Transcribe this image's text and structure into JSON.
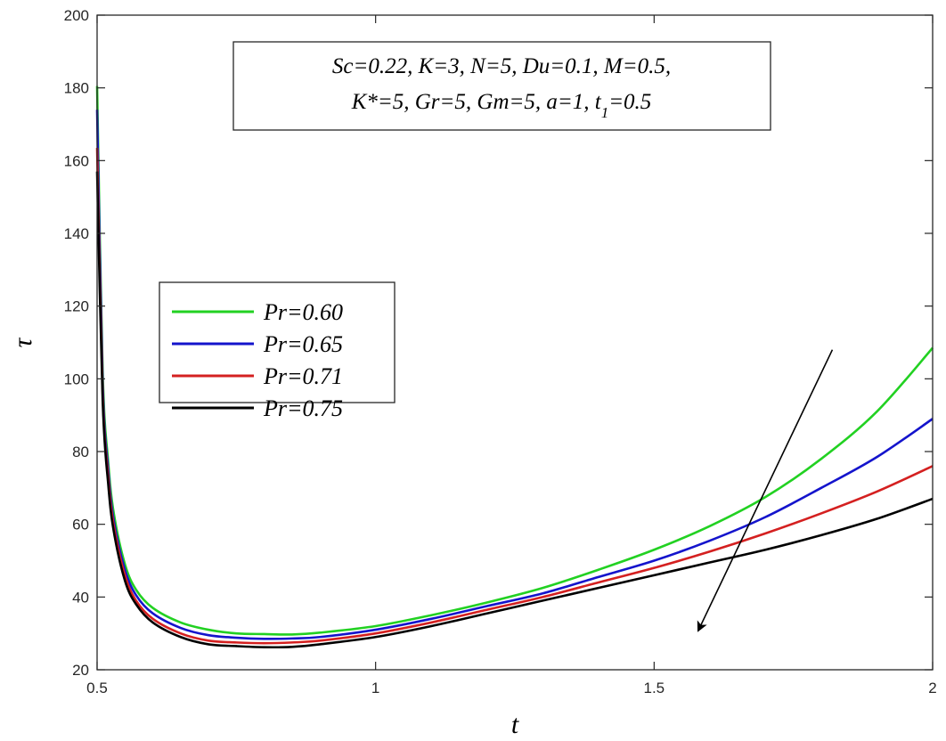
{
  "chart_data": {
    "type": "line",
    "xlabel": "t",
    "ylabel": "τ",
    "xlim": [
      0.5,
      2
    ],
    "ylim": [
      20,
      200
    ],
    "xticks": [
      0.5,
      1,
      1.5,
      2
    ],
    "xtick_labels": [
      "0.5",
      "1",
      "1.5",
      "2"
    ],
    "yticks": [
      20,
      40,
      60,
      80,
      100,
      120,
      140,
      160,
      180,
      200
    ],
    "ytick_labels": [
      "20",
      "40",
      "60",
      "80",
      "100",
      "120",
      "140",
      "160",
      "180",
      "200"
    ],
    "grid": false,
    "legend_position": "center-left",
    "annotation": {
      "line1": "Sc=0.22, K=3, N=5, Du=0.1, M=0.5,",
      "line2_prefix": "K*=5, Gr=5, Gm=5, a=1, t",
      "line2_sub": "1",
      "line2_suffix": "=0.5"
    },
    "x": [
      0.5,
      0.51,
      0.52,
      0.53,
      0.55,
      0.57,
      0.6,
      0.65,
      0.7,
      0.75,
      0.8,
      0.85,
      0.9,
      1.0,
      1.1,
      1.2,
      1.3,
      1.4,
      1.5,
      1.6,
      1.7,
      1.8,
      1.9,
      2.0
    ],
    "series": [
      {
        "name": "Pr=0.60",
        "color": "#22d122",
        "values": [
          180.5,
          102,
          77,
          63,
          49,
          42,
          37,
          33,
          31,
          30,
          29.8,
          29.7,
          30.2,
          32,
          35,
          38.5,
          42.5,
          47.5,
          53,
          59.5,
          67.5,
          78,
          91,
          108.5
        ]
      },
      {
        "name": "Pr=0.65",
        "color": "#1414cc",
        "values": [
          174,
          99,
          75,
          61,
          47.5,
          40.5,
          35.5,
          31.5,
          29.5,
          28.8,
          28.5,
          28.6,
          29,
          31,
          34,
          37.5,
          41,
          45.5,
          50,
          55.5,
          62,
          70,
          78.5,
          89
        ]
      },
      {
        "name": "Pr=0.71",
        "color": "#d42020",
        "values": [
          163.5,
          96,
          73,
          59.5,
          46,
          39,
          34,
          30,
          28,
          27.5,
          27.3,
          27.5,
          28,
          30,
          33,
          36.5,
          40,
          44,
          48,
          52.5,
          57.5,
          63,
          69,
          76
        ]
      },
      {
        "name": "Pr=0.75",
        "color": "#000000",
        "values": [
          157,
          94,
          71,
          58,
          44.5,
          38,
          33,
          29,
          27,
          26.5,
          26.2,
          26.3,
          27,
          29,
          32,
          35.5,
          39,
          42.5,
          46,
          49.5,
          53,
          57,
          61.5,
          67
        ]
      }
    ],
    "arrow": {
      "from": [
        1.82,
        108
      ],
      "to": [
        1.58,
        31
      ]
    }
  }
}
